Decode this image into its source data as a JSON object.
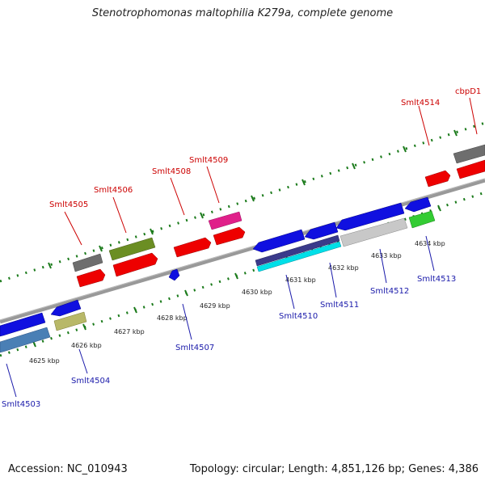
{
  "title": "Stenotrophomonas maltophilia K279a, complete genome",
  "footer": {
    "accession": "Accession: NC_010943",
    "summary": "Topology: circular; Length: 4,851,126 bp; Genes: 4,386"
  },
  "kbp_labels": [
    "4625 kbp",
    "4626 kbp",
    "4627 kbp",
    "4628 kbp",
    "4629 kbp",
    "4630 kbp",
    "4631 kbp",
    "4632 kbp",
    "4633 kbp",
    "4634 kbp"
  ],
  "top_labels": [
    "Smlt4505",
    "Smlt4506",
    "Smlt4508",
    "Smlt4509",
    "Smlt4514",
    "cbpD1"
  ],
  "bottom_labels": [
    "Smlt4503",
    "Smlt4504",
    "Smlt4507",
    "Smlt4510",
    "Smlt4511",
    "Smlt4512",
    "Smlt4513"
  ],
  "colors": {
    "label_top": "#cc0000",
    "label_bottom": "#1a1aaa",
    "backbone": "#888888",
    "tick": "#1a7a1a"
  }
}
